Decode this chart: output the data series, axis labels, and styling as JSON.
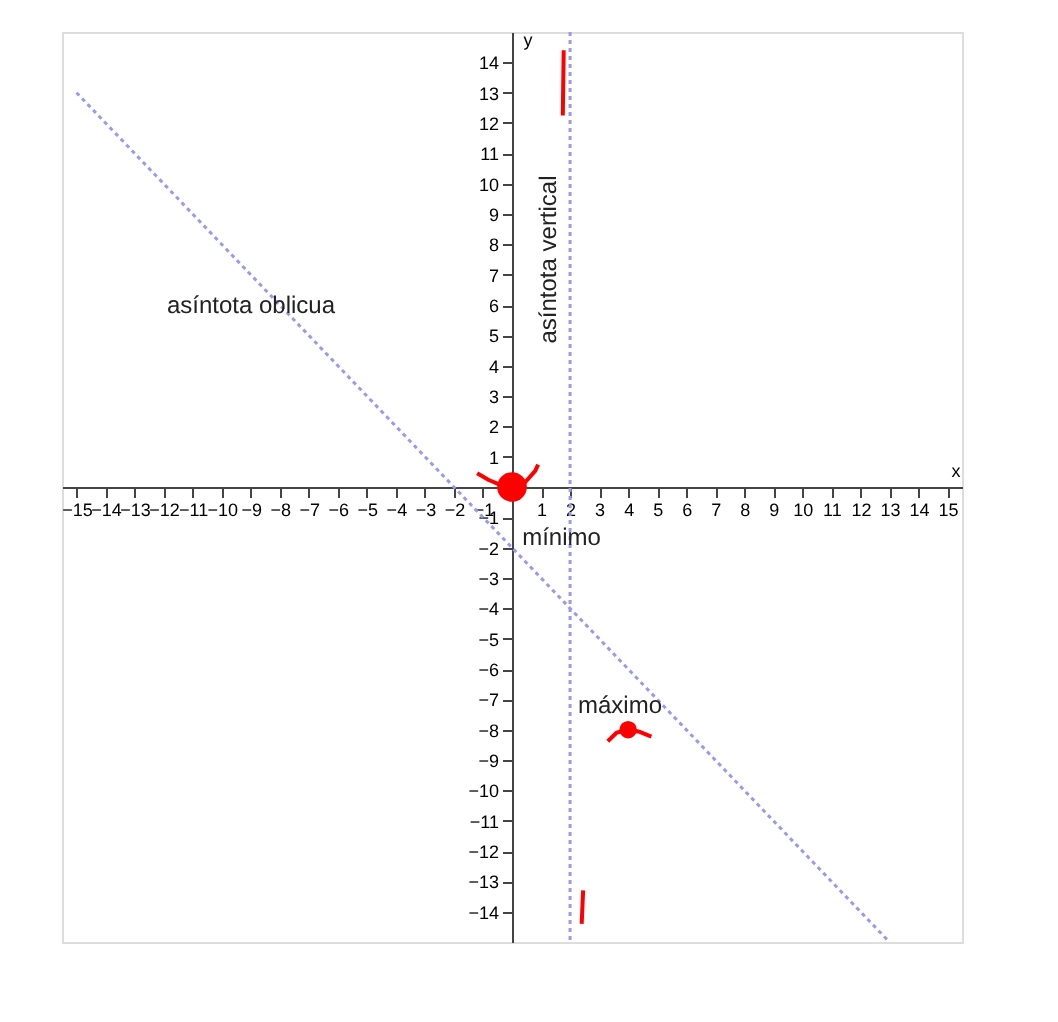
{
  "chart_data": {
    "type": "line",
    "xlabel": "x",
    "ylabel": "y",
    "xlim": [
      -15.5,
      15.5
    ],
    "ylim": [
      -15,
      15
    ],
    "xticks": [
      -15,
      -14,
      -13,
      -12,
      -11,
      -10,
      -9,
      -8,
      -7,
      -6,
      -5,
      -4,
      -3,
      -2,
      -1,
      {
        "value": 0,
        "label": null
      },
      1,
      2,
      3,
      4,
      5,
      6,
      7,
      8,
      9,
      10,
      11,
      12,
      13,
      14,
      15
    ],
    "yticks": [
      -14,
      -13,
      -12,
      -11,
      -10,
      -9,
      -8,
      -7,
      -6,
      -5,
      -4,
      -3,
      -2,
      -1,
      {
        "value": 0,
        "label": null
      },
      1,
      2,
      3,
      4,
      5,
      6,
      7,
      8,
      9,
      10,
      11,
      12,
      13,
      14
    ],
    "grid": false,
    "legend": false,
    "series": [
      {
        "color": "#9999ee",
        "line_style": "dotted",
        "x": [
          -15,
          13
        ],
        "values": [
          13,
          -15
        ]
      },
      {
        "color": "#ff0000",
        "line_style": "solid",
        "x": [
          -1.2,
          -0.8,
          -0.4,
          0,
          0.4,
          0.8,
          0.9
        ],
        "values": [
          0.45,
          0.23,
          0.07,
          0,
          0.1,
          0.53,
          0.74
        ]
      },
      {
        "color": "#ff0000",
        "line_style": "solid",
        "x": [
          1.75,
          1.78
        ],
        "values": [
          12.25,
          14.4
        ]
      },
      {
        "color": "#ff0000",
        "line_style": "solid",
        "x": [
          2.4,
          2.45
        ],
        "values": [
          -14.4,
          -13.3
        ]
      },
      {
        "color": "#ff0000",
        "line_style": "solid",
        "x": [
          3.3,
          3.6,
          4,
          4.4,
          4.8
        ],
        "values": [
          -8.38,
          -8.1,
          -8,
          -8.07,
          -8.23
        ]
      },
      {
        "type": "scatter",
        "color": "#ff0000",
        "marker": "circle",
        "sizes": [
          1
        ],
        "x": [
          0
        ],
        "values": [
          0
        ]
      },
      {
        "type": "scatter",
        "color": "#ff0000",
        "marker": "circle",
        "sizes": [
          0.35
        ],
        "x": [
          4
        ],
        "values": [
          -8
        ]
      }
    ],
    "ref_lines": [
      {
        "axis": "x",
        "value": 2,
        "label": "asíntota vertical",
        "color": "#9999ee",
        "line_style": "dotted"
      }
    ],
    "annotations": [
      "asíntota oblicua",
      "mínimo",
      "máximo"
    ]
  }
}
